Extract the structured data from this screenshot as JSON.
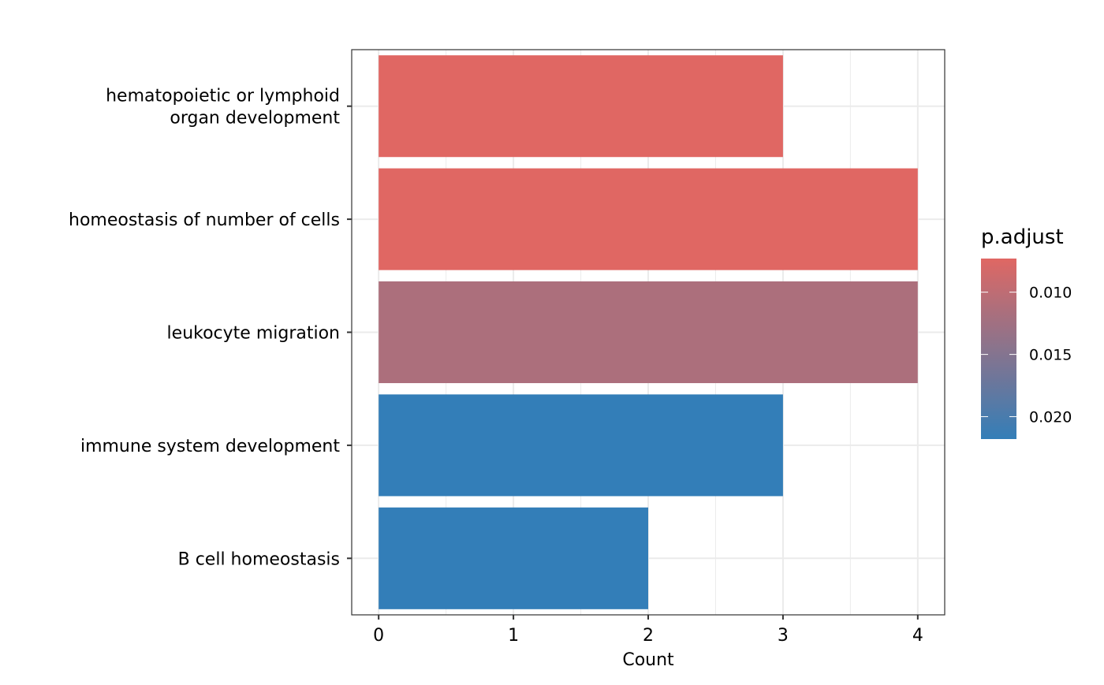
{
  "chart_data": {
    "type": "bar",
    "orientation": "horizontal",
    "categories": [
      "hematopoietic or lymphoid\norgan development",
      "homeostasis of number of cells",
      "leukocyte migration",
      "immune system development",
      "B cell homeostasis"
    ],
    "values": [
      3,
      4,
      4,
      3,
      2
    ],
    "p_adjust": [
      0.0073,
      0.0073,
      0.0115,
      0.0218,
      0.0218
    ],
    "title": "",
    "xlabel": "Count",
    "ylabel": "",
    "xlim": [
      -0.2,
      4.2
    ],
    "x_ticks": [
      "0",
      "1",
      "2",
      "3",
      "4"
    ],
    "grid": true,
    "legend": {
      "title": "p.adjust",
      "placement": "right",
      "range": [
        0.0073,
        0.0218
      ],
      "ticks": [
        {
          "value": 0.01,
          "label": "0.010"
        },
        {
          "value": 0.015,
          "label": "0.015"
        },
        {
          "value": 0.02,
          "label": "0.020"
        }
      ],
      "color_low": "#E06763",
      "color_high": "#337EB8"
    }
  }
}
